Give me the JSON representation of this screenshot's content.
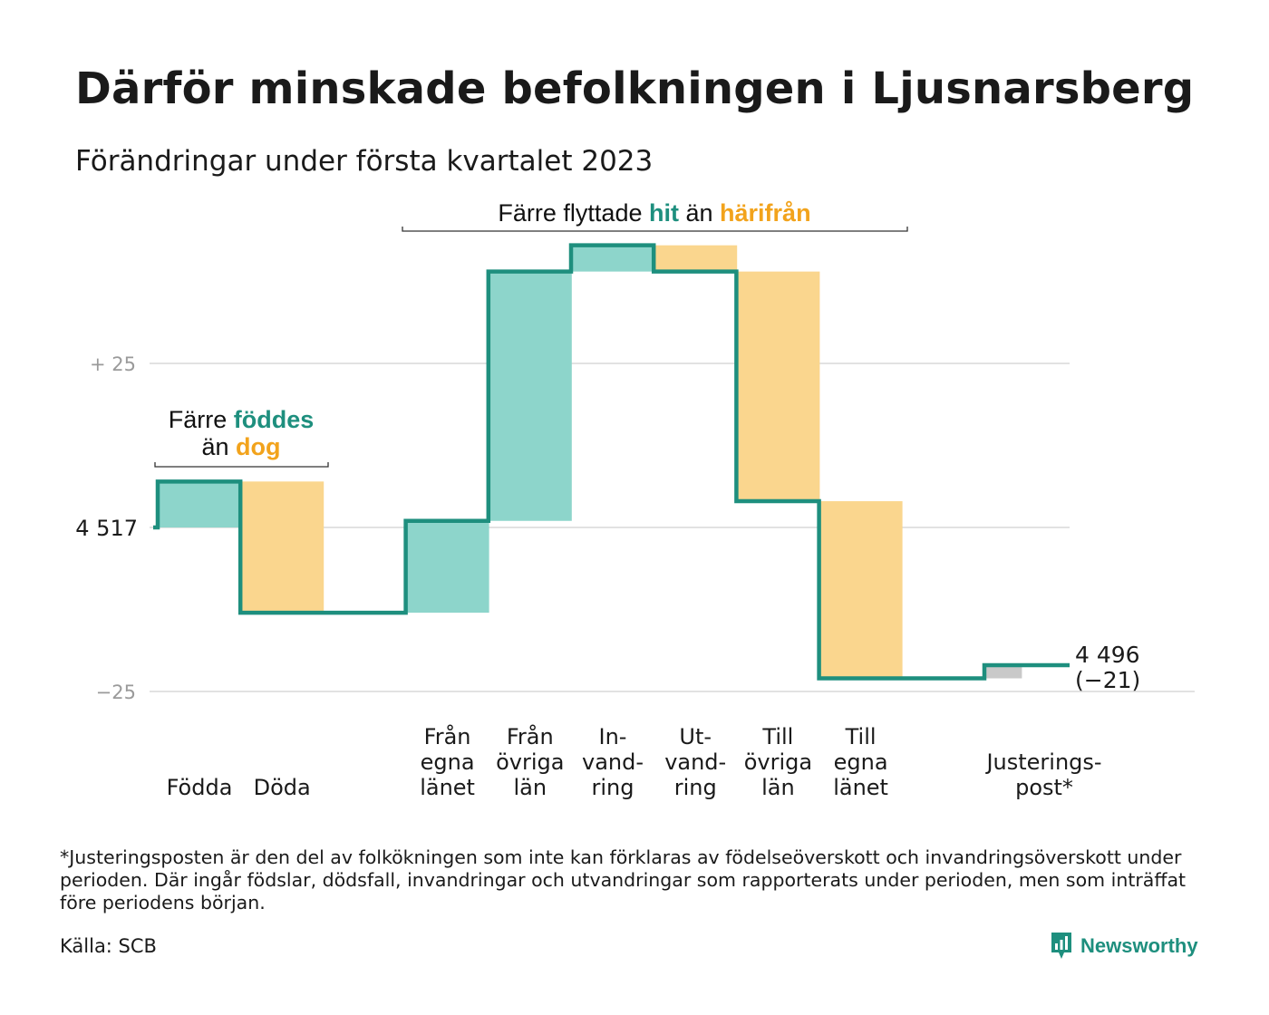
{
  "chart_data": {
    "type": "waterfall",
    "title": "Därför minskade befolkningen i Ljusnarsberg",
    "subtitle": "Förändringar under första kvartalet 2023",
    "start_value": 4517,
    "start_label": "4 517",
    "end_label_value": "4 496",
    "end_label_change": "(−21)",
    "y_ticks": [
      {
        "value": 25,
        "label": "+ 25"
      },
      {
        "value": 0,
        "label": ""
      },
      {
        "value": -25,
        "label": "−25"
      }
    ],
    "ylim": [
      -25,
      43
    ],
    "steps": [
      {
        "label": [
          "Födda"
        ],
        "value": 7,
        "kind": "gain"
      },
      {
        "label": [
          "Döda"
        ],
        "value": -20,
        "kind": "loss"
      },
      {
        "label": [],
        "value": 0,
        "kind": "none"
      },
      {
        "label": [
          "Från",
          "egna",
          "länet"
        ],
        "value": 14,
        "kind": "gain"
      },
      {
        "label": [
          "Från",
          "övriga",
          "län"
        ],
        "value": 38,
        "kind": "gain"
      },
      {
        "label": [
          "In-",
          "vand-",
          "ring"
        ],
        "value": 4,
        "kind": "gain"
      },
      {
        "label": [
          "Ut-",
          "vand-",
          "ring"
        ],
        "value": -4,
        "kind": "loss"
      },
      {
        "label": [
          "Till",
          "övriga",
          "län"
        ],
        "value": -35,
        "kind": "loss"
      },
      {
        "label": [
          "Till",
          "egna",
          "länet"
        ],
        "value": -27,
        "kind": "loss"
      },
      {
        "label": [],
        "value": 0,
        "kind": "none"
      },
      {
        "label": [
          "Justerings-",
          "post*"
        ],
        "value": 2,
        "kind": "adjust"
      }
    ],
    "annotations": [
      {
        "parts": [
          {
            "text": "Färre ",
            "color": "#111111"
          },
          {
            "text": "föddes",
            "color": "#1e8f7e"
          }
        ],
        "parts2": [
          {
            "text": "än ",
            "color": "#111111"
          },
          {
            "text": "dog",
            "color": "#f2a31c"
          }
        ]
      },
      {
        "parts": [
          {
            "text": "Färre flyttade ",
            "color": "#111111"
          },
          {
            "text": "hit",
            "color": "#1e8f7e"
          },
          {
            "text": " än ",
            "color": "#111111"
          },
          {
            "text": "härifrån",
            "color": "#f2a31c"
          }
        ]
      }
    ],
    "colors": {
      "gain": "#8dd5cb",
      "loss": "#fad68e",
      "adjust": "#c9c9c9",
      "line": "#1e8f7e",
      "grid": "#e2e2e2"
    }
  },
  "footnote": "*Justeringsposten är den del av folkökningen som inte kan förklaras av födelseöverskott och invandringsöverskott under perioden. Där ingår födslar, dödsfall, invandringar och utvandringar som rapporterats under perioden, men som inträffat före periodens början.",
  "source": "Källa: SCB",
  "brand": {
    "name": "Newsworthy",
    "icon": "newsworthy-logo-icon"
  }
}
